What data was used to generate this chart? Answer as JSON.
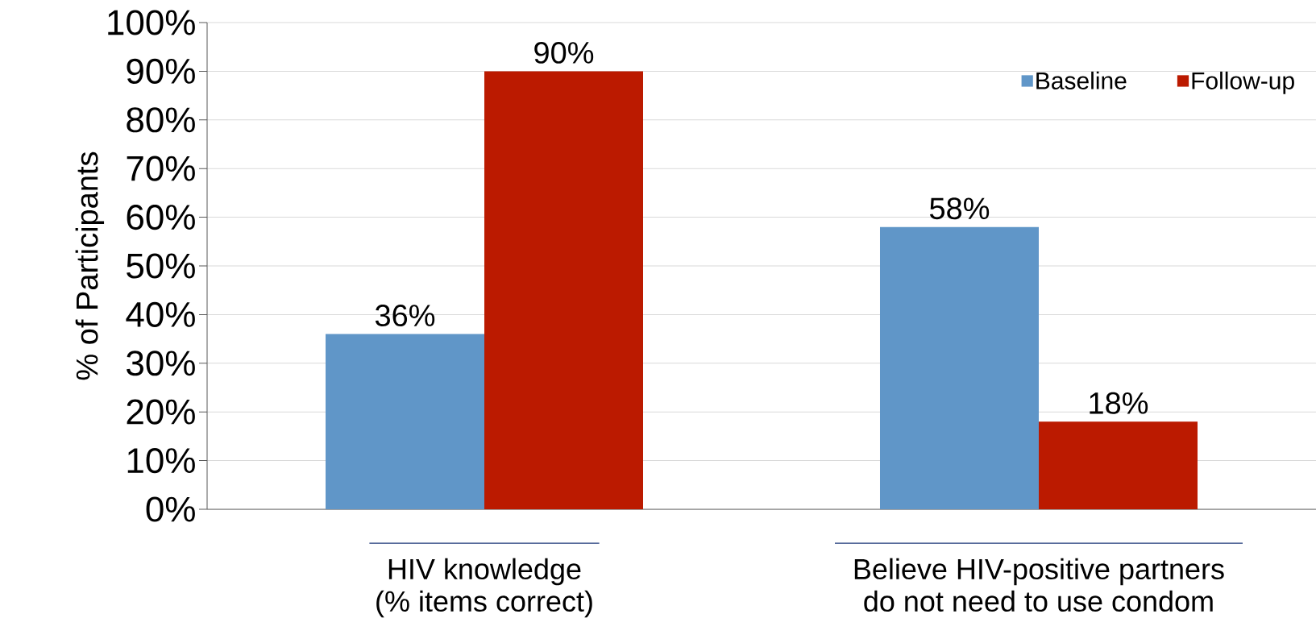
{
  "chart_data": {
    "type": "bar",
    "categories": [
      "HIV knowledge (% items correct)",
      "Believe HIV-positive partners do not need to use condom"
    ],
    "ylabel": "% of Participants",
    "series": [
      {
        "name": "Baseline",
        "color": "#6096c8",
        "values": [
          36,
          58
        ],
        "value_labels": [
          "36%",
          "58%"
        ]
      },
      {
        "name": "Follow-up",
        "color": "#bb1a00",
        "values": [
          90,
          18
        ],
        "value_labels": [
          "90%",
          "18%"
        ]
      }
    ],
    "ylim": [
      0,
      100
    ],
    "yticks": [
      {
        "value": 0,
        "label": "0%"
      },
      {
        "value": 10,
        "label": "10%"
      },
      {
        "value": 20,
        "label": "20%"
      },
      {
        "value": 30,
        "label": "30%"
      },
      {
        "value": 40,
        "label": "40%"
      },
      {
        "value": 50,
        "label": "50%"
      },
      {
        "value": 60,
        "label": "60%"
      },
      {
        "value": 70,
        "label": "70%"
      },
      {
        "value": 80,
        "label": "80%"
      },
      {
        "value": 90,
        "label": "90%"
      },
      {
        "value": 100,
        "label": "100%"
      }
    ],
    "grid": "y",
    "legend": "top right"
  }
}
